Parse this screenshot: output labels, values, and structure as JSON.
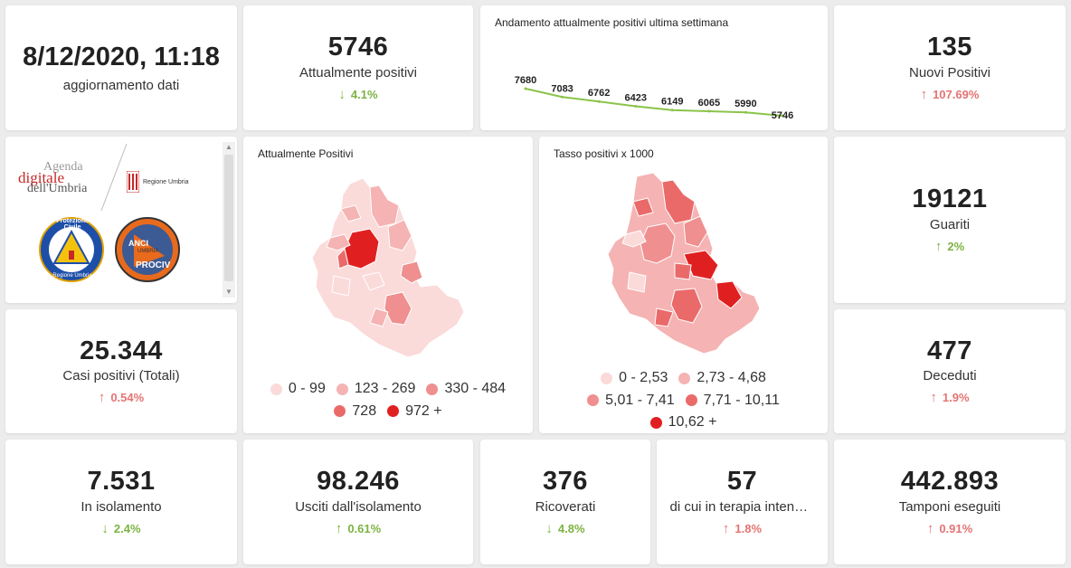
{
  "update": {
    "datetime": "8/12/2020, 11:18",
    "label": "aggiornamento dati"
  },
  "attualmente_positivi": {
    "value": "5746",
    "label": "Attualmente positivi",
    "delta": "4.1%",
    "direction": "down"
  },
  "nuovi_positivi": {
    "value": "135",
    "label": "Nuovi Positivi",
    "delta": "107.69%",
    "direction": "up"
  },
  "guariti": {
    "value": "19121",
    "label": "Guariti",
    "delta": "2%",
    "direction": "up_green"
  },
  "casi_totali": {
    "value": "25.344",
    "label": "Casi positivi (Totali)",
    "delta": "0.54%",
    "direction": "up"
  },
  "deceduti": {
    "value": "477",
    "label": "Deceduti",
    "delta": "1.9%",
    "direction": "up"
  },
  "isolamento": {
    "value": "7.531",
    "label": "In isolamento",
    "delta": "2.4%",
    "direction": "down"
  },
  "usciti": {
    "value": "98.246",
    "label": "Usciti dall'isolamento",
    "delta": "0.61%",
    "direction": "up_green"
  },
  "ricoverati": {
    "value": "376",
    "label": "Ricoverati",
    "delta": "4.8%",
    "direction": "down"
  },
  "terapia": {
    "value": "57",
    "label": "di cui in terapia intensiva",
    "delta": "1.8%",
    "direction": "up"
  },
  "tamponi": {
    "value": "442.893",
    "label": "Tamponi eseguiti",
    "delta": "0.91%",
    "direction": "up"
  },
  "logos": {
    "agenda_line1": "Agenda",
    "agenda_line2": "digitale",
    "agenda_line3": "dell'Umbria",
    "regione": "Regione Umbria",
    "protezione": "Protezione Civile",
    "protezione_sub": "Regione Umbria",
    "anci": "ANCI",
    "anci_umbria": "UMBRIA",
    "prociv": "PROCIV"
  },
  "map1": {
    "title": "Attualmente Positivi",
    "legend": [
      {
        "label": "0 - 99",
        "color": "#fbdada"
      },
      {
        "label": "123 - 269",
        "color": "#f5b3b3"
      },
      {
        "label": "330 - 484",
        "color": "#ef8f8f"
      },
      {
        "label": "728",
        "color": "#ea6a6a"
      },
      {
        "label": "972 +",
        "color": "#e02020"
      }
    ]
  },
  "map2": {
    "title": "Tasso positivi x 1000",
    "legend": [
      {
        "label": "0 - 2,53",
        "color": "#fbdada"
      },
      {
        "label": "2,73 - 4,68",
        "color": "#f5b3b3"
      },
      {
        "label": "5,01 - 7,41",
        "color": "#ef8f8f"
      },
      {
        "label": "7,71 - 10,11",
        "color": "#ea6a6a"
      },
      {
        "label": "10,62 +",
        "color": "#e02020"
      }
    ]
  },
  "colors": {
    "green": "#7cb342",
    "red": "#e57373",
    "line": "#8bc34a"
  },
  "chart_data": {
    "type": "line",
    "title": "Andamento attualmente positivi ultima settimana",
    "values": [
      7680,
      7083,
      6762,
      6423,
      6149,
      6065,
      5990,
      5746
    ],
    "xlabel": "",
    "ylabel": ""
  }
}
